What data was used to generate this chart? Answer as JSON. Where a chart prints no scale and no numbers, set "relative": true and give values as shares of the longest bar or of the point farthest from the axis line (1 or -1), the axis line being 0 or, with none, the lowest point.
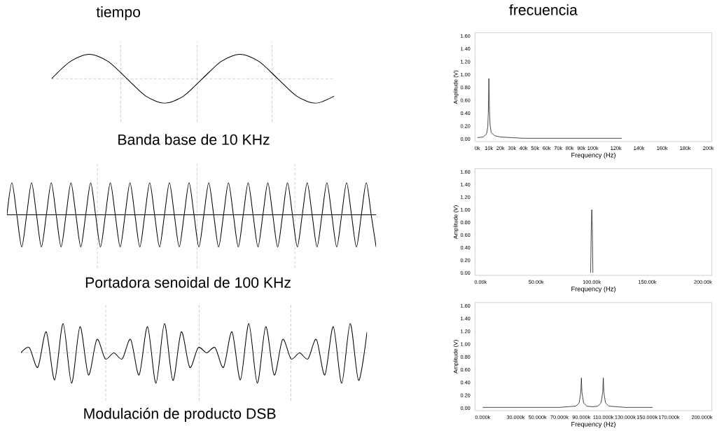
{
  "chart_data": [
    {
      "type": "line",
      "title": "tiempo",
      "xlabel": "Banda base de 10 KHz",
      "relative": true,
      "grid": true,
      "color": "#000000",
      "categories": [
        null,
        null,
        null,
        null,
        null,
        null,
        null,
        null,
        null,
        null,
        null,
        null,
        null,
        null,
        null,
        null
      ],
      "values": [
        0,
        0.71,
        1,
        0.71,
        0,
        -0.71,
        -1,
        -0.71,
        0,
        0.71,
        1,
        0.71,
        0,
        -0.71,
        -1,
        -0.71
      ]
    },
    {
      "type": "line",
      "title": "frecuencia",
      "xlabel": "Frequency (Hz)",
      "ylabel": "Amplitude (V)",
      "color": "#1a1a1a",
      "x": [
        0,
        5000,
        8000,
        9000,
        9500,
        10000,
        10500,
        11000,
        12000,
        15000,
        20000,
        30000,
        40000,
        60000,
        125000
      ],
      "values": [
        0.02,
        0.03,
        0.08,
        0.18,
        0.4,
        0.94,
        0.45,
        0.22,
        0.1,
        0.05,
        0.03,
        0.02,
        0.01,
        0.01,
        0.01
      ],
      "xlim": [
        -2000,
        203000
      ],
      "ylim": [
        -0.04,
        1.65
      ],
      "xticks": [
        {
          "value": 0,
          "label": "0k"
        },
        {
          "value": 10000,
          "label": "10k"
        },
        {
          "value": 20000,
          "label": "20k"
        },
        {
          "value": 30000,
          "label": "30k"
        },
        {
          "value": 40000,
          "label": "40k"
        },
        {
          "value": 50000,
          "label": "50k"
        },
        {
          "value": 60000,
          "label": "60k"
        },
        {
          "value": 70000,
          "label": "70k"
        },
        {
          "value": 80000,
          "label": "80k"
        },
        {
          "value": 90000,
          "label": "90k"
        },
        {
          "value": 100000,
          "label": "100k"
        },
        {
          "value": 120000,
          "label": "120k"
        },
        {
          "value": 140000,
          "label": "140k"
        },
        {
          "value": 160000,
          "label": "160k"
        },
        {
          "value": 180000,
          "label": "180k"
        },
        {
          "value": 200000,
          "label": "200k"
        }
      ],
      "yticks": [
        {
          "value": 0,
          "label": "0.00"
        },
        {
          "value": 0.2,
          "label": "0.20"
        },
        {
          "value": 0.4,
          "label": "0.40"
        },
        {
          "value": 0.6,
          "label": "0.60"
        },
        {
          "value": 0.8,
          "label": "0.80"
        },
        {
          "value": 1.0,
          "label": "1.00"
        },
        {
          "value": 1.2,
          "label": "1.20"
        },
        {
          "value": 1.4,
          "label": "1.40"
        },
        {
          "value": 1.6,
          "label": "1.60"
        }
      ]
    },
    {
      "type": "line",
      "xlabel": "Portadora senoidal de 100 KHz",
      "relative": true,
      "grid": "x",
      "color": "#000000",
      "ref_lines": [
        {
          "axis": "y",
          "value": 0,
          "color": "#000000"
        }
      ],
      "categories": [
        null,
        null,
        null,
        null,
        null,
        null,
        null,
        null,
        null,
        null,
        null,
        null,
        null,
        null,
        null,
        null,
        null,
        null,
        null,
        null,
        null,
        null,
        null,
        null,
        null,
        null,
        null,
        null,
        null,
        null,
        null,
        null,
        null,
        null,
        null,
        null,
        null,
        null,
        null,
        null,
        null,
        null,
        null,
        null,
        null,
        null,
        null,
        null,
        null,
        null,
        null,
        null,
        null,
        null,
        null,
        null,
        null,
        null,
        null,
        null,
        null,
        null,
        null,
        null,
        null,
        null,
        null,
        null,
        null,
        null,
        null,
        null,
        null,
        null,
        null,
        null
      ],
      "values": [
        0,
        1,
        0,
        -1,
        0,
        1,
        0,
        -1,
        0,
        1,
        0,
        -1,
        0,
        1,
        0,
        -1,
        0,
        1,
        0,
        -1,
        0,
        1,
        0,
        -1,
        0,
        1,
        0,
        -1,
        0,
        1,
        0,
        -1,
        0,
        1,
        0,
        -1,
        0,
        1,
        0,
        -1,
        0,
        1,
        0,
        -1,
        0,
        1,
        0,
        -1,
        0,
        1,
        0,
        -1,
        0,
        1,
        0,
        -1,
        0,
        1,
        0,
        -1,
        0,
        1,
        0,
        -1,
        0,
        1,
        0,
        -1,
        0,
        1,
        0,
        -1,
        0,
        1,
        0,
        -1
      ]
    },
    {
      "type": "line",
      "xlabel": "Frequency (Hz)",
      "ylabel": "Amplitude (V)",
      "color": "#1a1a1a",
      "x": [
        99000,
        99500,
        100000,
        100500,
        101000
      ],
      "values": [
        0,
        0.66,
        1.0,
        0.75,
        0
      ],
      "xlim": [
        -5000,
        208000
      ],
      "ylim": [
        -0.04,
        1.65
      ],
      "xticks": [
        {
          "value": 0,
          "label": "0.00k"
        },
        {
          "value": 50000,
          "label": "50.00k"
        },
        {
          "value": 100000,
          "label": "100.00k"
        },
        {
          "value": 150000,
          "label": "150.00k"
        },
        {
          "value": 200000,
          "label": "200.00k"
        }
      ],
      "yticks": [
        {
          "value": 0,
          "label": "0.00"
        },
        {
          "value": 0.2,
          "label": "0.20"
        },
        {
          "value": 0.4,
          "label": "0.40"
        },
        {
          "value": 0.6,
          "label": "0.60"
        },
        {
          "value": 0.8,
          "label": "0.80"
        },
        {
          "value": 1.0,
          "label": "1.00"
        },
        {
          "value": 1.2,
          "label": "1.20"
        },
        {
          "value": 1.4,
          "label": "1.40"
        },
        {
          "value": 1.6,
          "label": "1.60"
        }
      ]
    },
    {
      "type": "line",
      "xlabel": "Modulación de producto DSB",
      "relative": true,
      "grid": true,
      "color": "#000000",
      "categories": [
        null,
        null,
        null,
        null,
        null,
        null,
        null,
        null,
        null,
        null,
        null,
        null,
        null,
        null,
        null,
        null,
        null,
        null,
        null,
        null,
        null,
        null,
        null,
        null,
        null,
        null,
        null,
        null,
        null,
        null,
        null,
        null,
        null,
        null,
        null,
        null,
        null,
        null,
        null,
        null,
        null,
        null
      ],
      "values": [
        0,
        0.17,
        -0.48,
        0.69,
        -0.89,
        0.96,
        -1,
        0.86,
        -0.73,
        0.44,
        -0.2,
        0,
        -0.2,
        0.44,
        -0.73,
        0.86,
        -1,
        0.96,
        -0.91,
        0.69,
        -0.48,
        0.17,
        0,
        0.17,
        -0.48,
        0.69,
        -0.89,
        0.96,
        -1,
        0.86,
        -0.73,
        0.44,
        -0.2,
        0,
        -0.2,
        0.44,
        -0.73,
        0.86,
        -1,
        0.96,
        -0.91,
        0.69
      ]
    },
    {
      "type": "line",
      "xlabel": "Frequency (Hz)",
      "ylabel": "Amplitude (V)",
      "color": "#1a1a1a",
      "x": [
        0,
        70000,
        85000,
        88000,
        89500,
        90000,
        90500,
        92000,
        95000,
        100000,
        105000,
        108000,
        109500,
        110000,
        110500,
        112000,
        115000,
        130000,
        155000
      ],
      "values": [
        0.01,
        0.01,
        0.03,
        0.08,
        0.25,
        0.47,
        0.25,
        0.08,
        0.03,
        0.02,
        0.03,
        0.08,
        0.25,
        0.47,
        0.25,
        0.08,
        0.03,
        0.01,
        0.01
      ],
      "xlim": [
        -7000,
        209000
      ],
      "ylim": [
        -0.04,
        1.65
      ],
      "xticks": [
        {
          "value": 0,
          "label": "0.000k"
        },
        {
          "value": 30000,
          "label": "30.000k"
        },
        {
          "value": 50000,
          "label": "50.000k"
        },
        {
          "value": 70000,
          "label": "70.000k"
        },
        {
          "value": 90000,
          "label": "90.000k"
        },
        {
          "value": 110000,
          "label": "110.000k"
        },
        {
          "value": 130000,
          "label": "130.000k"
        },
        {
          "value": 150000,
          "label": "150.000k"
        },
        {
          "value": 170000,
          "label": "170.000k"
        },
        {
          "value": 200000,
          "label": "200.000k"
        }
      ],
      "yticks": [
        {
          "value": 0,
          "label": "0.00"
        },
        {
          "value": 0.2,
          "label": "0.20"
        },
        {
          "value": 0.4,
          "label": "0.40"
        },
        {
          "value": 0.6,
          "label": "0.60"
        },
        {
          "value": 0.8,
          "label": "0.80"
        },
        {
          "value": 1.0,
          "label": "1.00"
        },
        {
          "value": 1.2,
          "label": "1.20"
        },
        {
          "value": 1.4,
          "label": "1.40"
        },
        {
          "value": 1.6,
          "label": "1.60"
        }
      ]
    }
  ]
}
